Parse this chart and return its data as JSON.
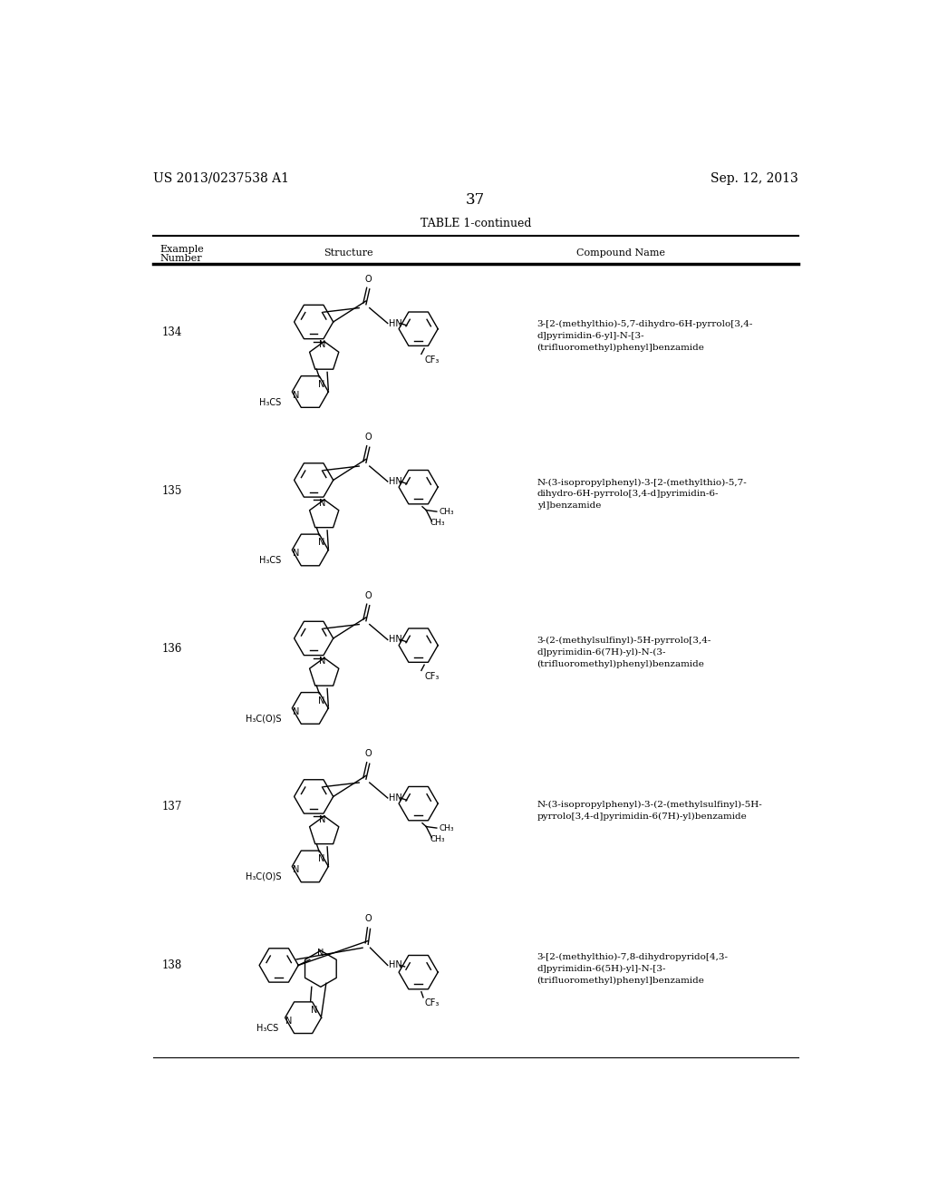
{
  "page_left_header": "US 2013/0237538 A1",
  "page_right_header": "Sep. 12, 2013",
  "page_number": "37",
  "table_title": "TABLE 1-continued",
  "background_color": "#ffffff",
  "text_color": "#000000",
  "font_size_body": 8,
  "font_size_page_header": 9,
  "font_size_table_title": 9,
  "row_numbers": [
    "134",
    "135",
    "136",
    "137",
    "138"
  ],
  "compound_names": [
    "3-[2-(methylthio)-5,7-dihydro-6H-pyrrolo[3,4-\nd]pyrimidin-6-yl]-N-[3-\n(trifluoromethyl)phenyl]benzamide",
    "N-(3-isopropylphenyl)-3-[2-(methylthio)-5,7-\ndihydro-6H-pyrrolo[3,4-d]pyrimidin-6-\nyl]benzamide",
    "3-(2-(methylsulfinyl)-5H-pyrrolo[3,4-\nd]pyrimidin-6(7H)-yl)-N-(3-\n(trifluoromethyl)phenyl)benzamide",
    "N-(3-isopropylphenyl)-3-(2-(methylsulfinyl)-5H-\npyrrolo[3,4-d]pyrimidin-6(7H)-yl)benzamide",
    "3-[2-(methylthio)-7,8-dihydropyrido[4,3-\nd]pyrimidin-6(5H)-yl]-N-[3-\n(trifluoromethyl)phenyl]benzamide"
  ],
  "left_labels": [
    "H₃CS",
    "H₃CS",
    "H₃C(O)S",
    "H₃C(O)S",
    "H₃CS"
  ],
  "right_labels_cf3": [
    true,
    false,
    true,
    false,
    true
  ],
  "right_labels_isopropyl": [
    false,
    true,
    false,
    true,
    false
  ]
}
